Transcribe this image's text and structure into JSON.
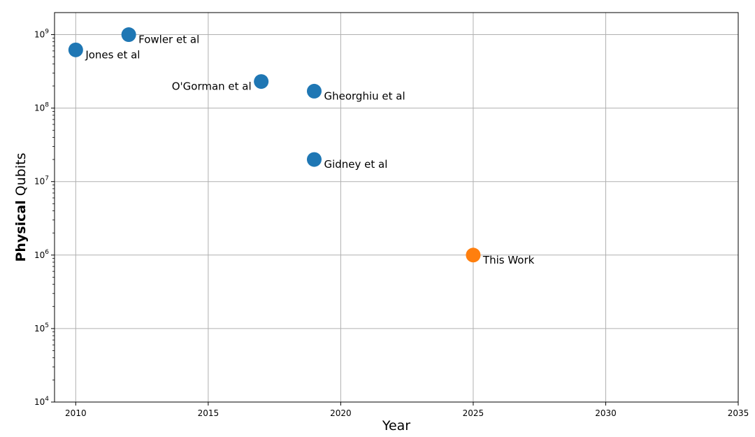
{
  "chart_data": {
    "type": "scatter",
    "title": "",
    "xlabel": "Year",
    "ylabel_bold": "Physical",
    "ylabel_rest": " Qubits",
    "xlim": [
      2009.2,
      2035
    ],
    "ylim_log10": [
      4,
      9.3
    ],
    "yscale": "log",
    "grid": true,
    "x_ticks": [
      {
        "value": 2010,
        "label": "2010"
      },
      {
        "value": 2015,
        "label": "2015"
      },
      {
        "value": 2020,
        "label": "2020"
      },
      {
        "value": 2025,
        "label": "2025"
      },
      {
        "value": 2030,
        "label": "2030"
      },
      {
        "value": 2035,
        "label": "2035"
      }
    ],
    "y_ticks": [
      {
        "exp": 4,
        "base": "10",
        "power": "4"
      },
      {
        "exp": 5,
        "base": "10",
        "power": "5"
      },
      {
        "exp": 6,
        "base": "10",
        "power": "6"
      },
      {
        "exp": 7,
        "base": "10",
        "power": "7"
      },
      {
        "exp": 8,
        "base": "10",
        "power": "8"
      },
      {
        "exp": 9,
        "base": "10",
        "power": "9"
      }
    ],
    "points": [
      {
        "label": "Jones et al",
        "x": 2010,
        "y": 620000000,
        "color": "#1f77b4",
        "label_side": "right"
      },
      {
        "label": "Fowler et al",
        "x": 2012,
        "y": 1000000000,
        "color": "#1f77b4",
        "label_side": "right"
      },
      {
        "label": "O'Gorman et al",
        "x": 2017,
        "y": 230000000,
        "color": "#1f77b4",
        "label_side": "left"
      },
      {
        "label": "Gheorghiu et al",
        "x": 2019,
        "y": 170000000,
        "color": "#1f77b4",
        "label_side": "right"
      },
      {
        "label": "Gidney et al",
        "x": 2019,
        "y": 20000000,
        "color": "#1f77b4",
        "label_side": "right"
      },
      {
        "label": "This Work",
        "x": 2025,
        "y": 1000000,
        "color": "#ff7f0e",
        "label_side": "right"
      }
    ]
  }
}
